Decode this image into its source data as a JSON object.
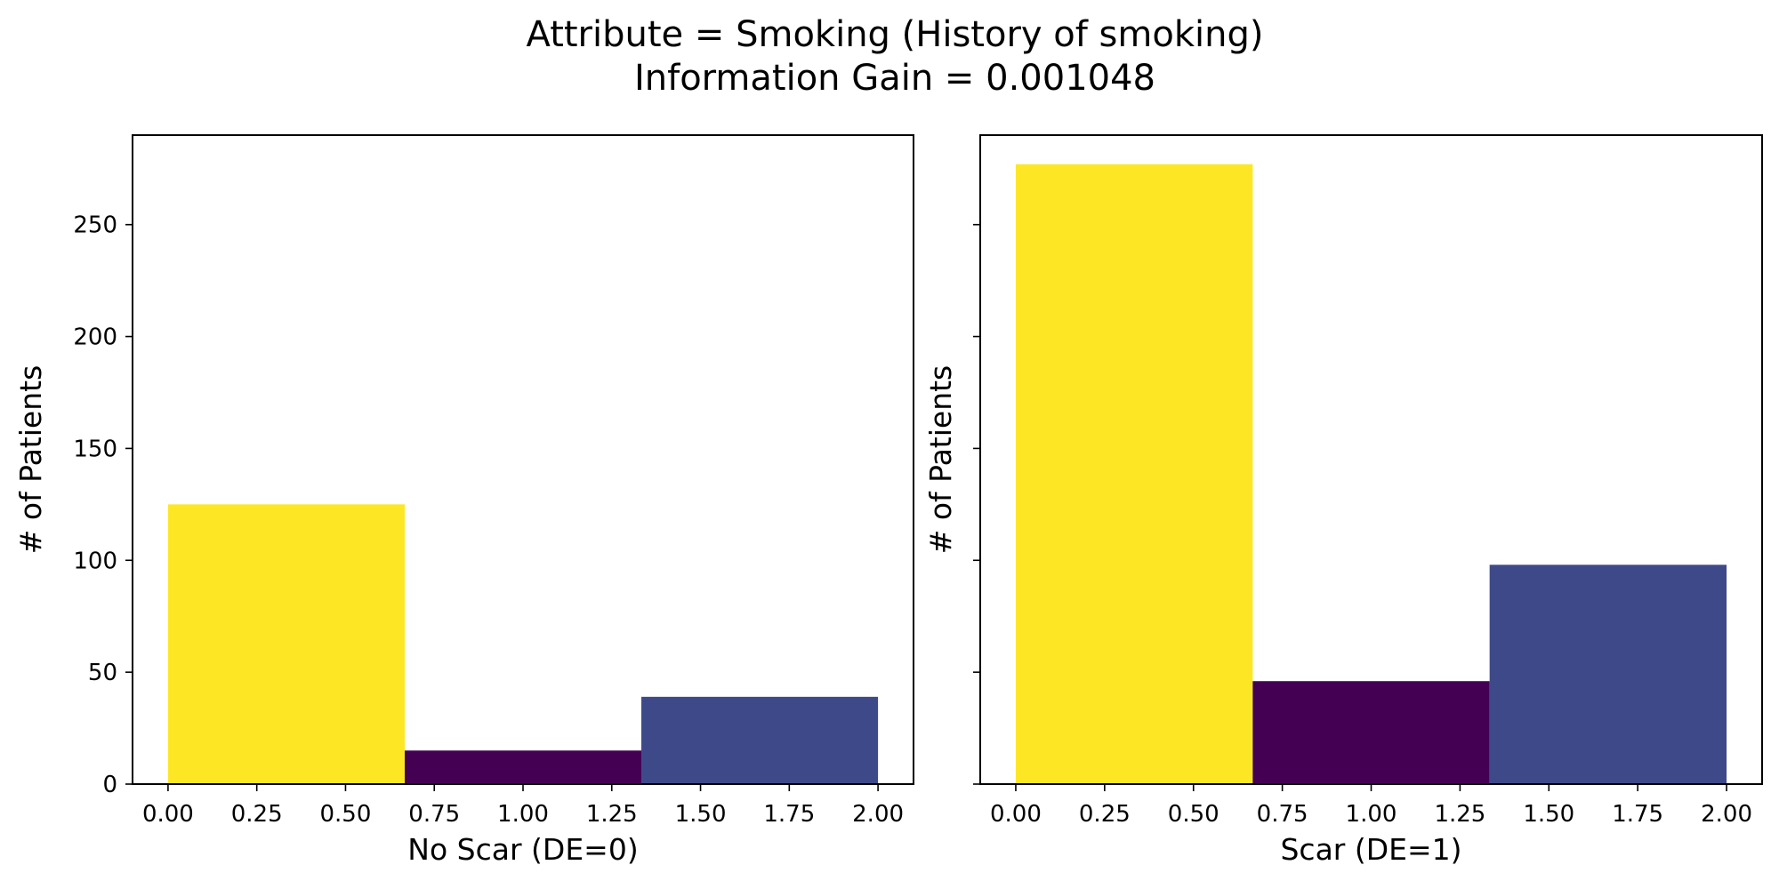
{
  "figure": {
    "title_line1": "Attribute = Smoking (History of smoking)",
    "title_line2": "Information Gain = 0.001048"
  },
  "chart_data": [
    {
      "type": "bar",
      "name": "no-scar-panel",
      "xlabel": "No Scar (DE=0)",
      "ylabel": "# of Patients",
      "xlim": [
        -0.1,
        2.1
      ],
      "ylim": [
        0,
        290
      ],
      "xticks": [
        "0.00",
        "0.25",
        "0.50",
        "0.75",
        "1.00",
        "1.25",
        "1.50",
        "1.75",
        "2.00"
      ],
      "xtick_values": [
        0,
        0.25,
        0.5,
        0.75,
        1.0,
        1.25,
        1.5,
        1.75,
        2.0
      ],
      "yticks": [
        "0",
        "50",
        "100",
        "150",
        "200",
        "250"
      ],
      "ytick_values": [
        0,
        50,
        100,
        150,
        200,
        250
      ],
      "show_yticklabels": true,
      "bins": [
        {
          "x0": 0.0,
          "x1": 0.6667,
          "value": 125,
          "color": "#fde725"
        },
        {
          "x0": 0.6667,
          "x1": 1.3333,
          "value": 15,
          "color": "#440154"
        },
        {
          "x0": 1.3333,
          "x1": 2.0,
          "value": 39,
          "color": "#3e4989"
        }
      ]
    },
    {
      "type": "bar",
      "name": "scar-panel",
      "xlabel": "Scar (DE=1)",
      "ylabel": "# of Patients",
      "xlim": [
        -0.1,
        2.1
      ],
      "ylim": [
        0,
        290
      ],
      "xticks": [
        "0.00",
        "0.25",
        "0.50",
        "0.75",
        "1.00",
        "1.25",
        "1.50",
        "1.75",
        "2.00"
      ],
      "xtick_values": [
        0,
        0.25,
        0.5,
        0.75,
        1.0,
        1.25,
        1.5,
        1.75,
        2.0
      ],
      "yticks": [
        "0",
        "50",
        "100",
        "150",
        "200",
        "250"
      ],
      "ytick_values": [
        0,
        50,
        100,
        150,
        200,
        250
      ],
      "show_yticklabels": false,
      "bins": [
        {
          "x0": 0.0,
          "x1": 0.6667,
          "value": 277,
          "color": "#fde725"
        },
        {
          "x0": 0.6667,
          "x1": 1.3333,
          "value": 46,
          "color": "#440154"
        },
        {
          "x0": 1.3333,
          "x1": 2.0,
          "value": 98,
          "color": "#3e4989"
        }
      ]
    }
  ]
}
